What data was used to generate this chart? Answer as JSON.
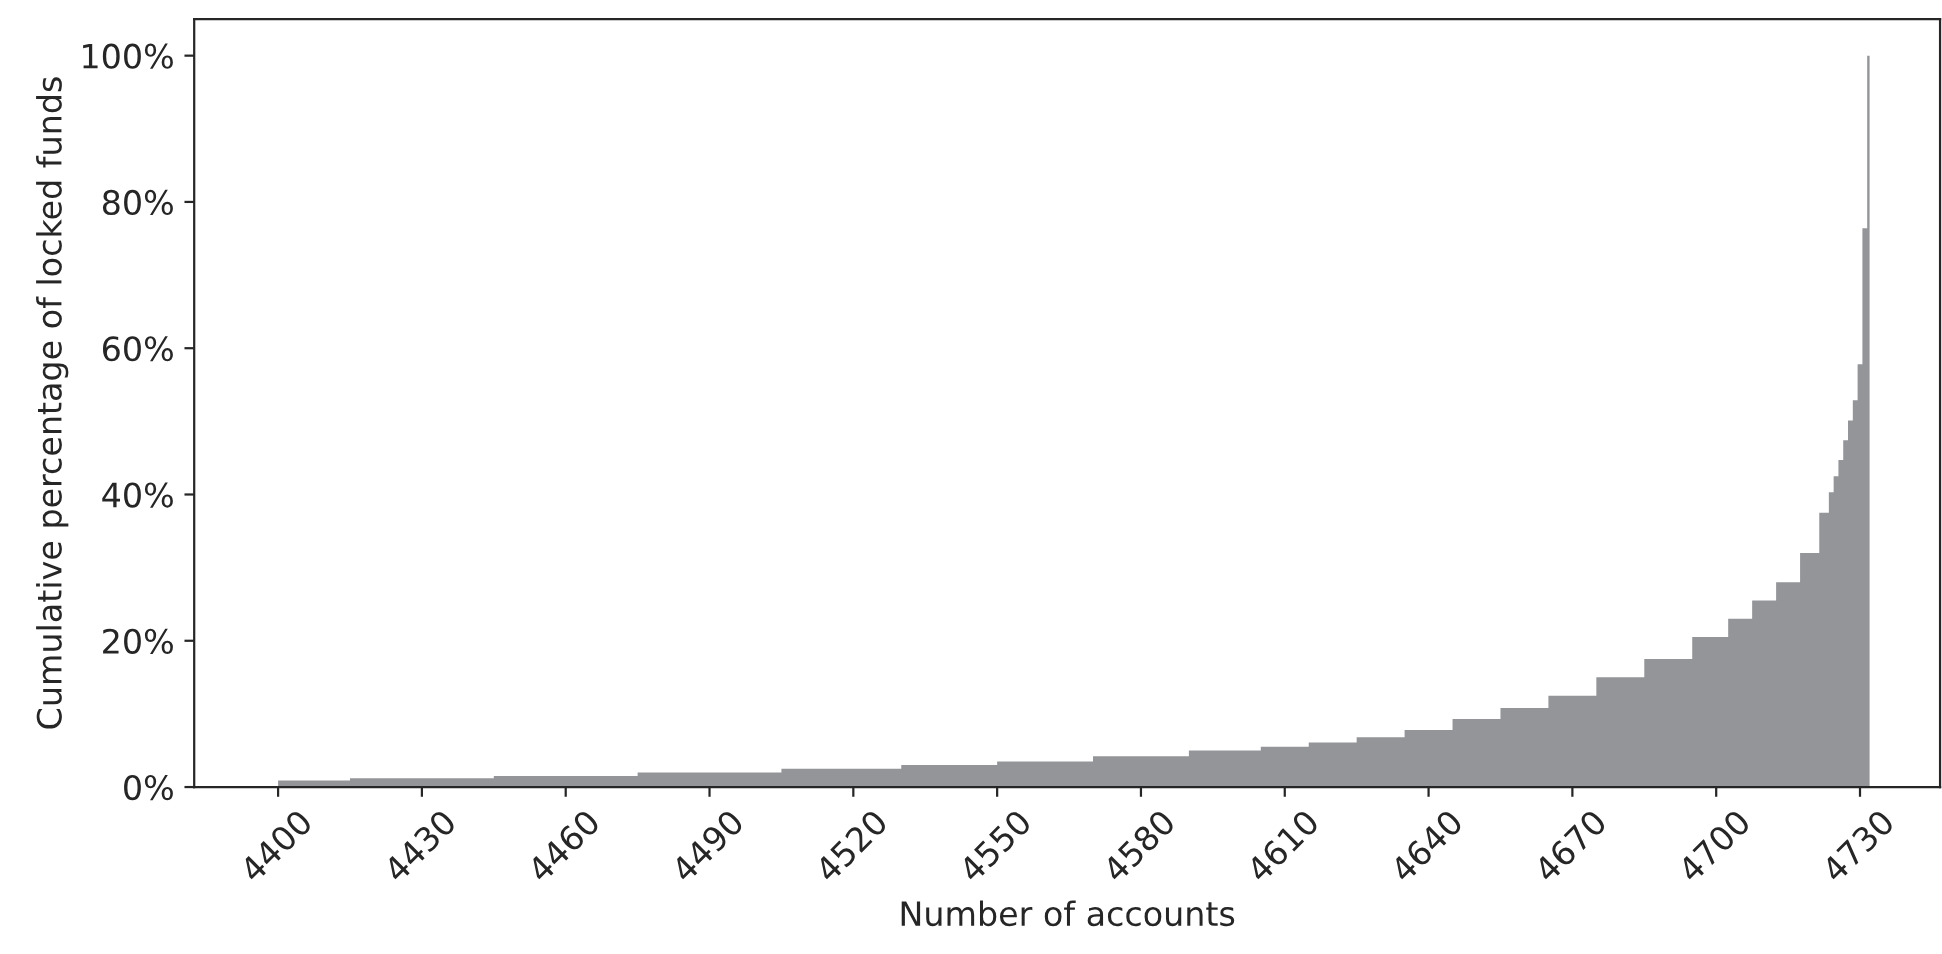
{
  "chart_data": {
    "type": "area",
    "xlabel": "Number of accounts",
    "ylabel": "Cumulative percentage of locked funds",
    "x": [
      4400,
      4430,
      4460,
      4490,
      4520,
      4540,
      4560,
      4580,
      4600,
      4610,
      4620,
      4630,
      4640,
      4650,
      4660,
      4670,
      4680,
      4690,
      4700,
      4705,
      4710,
      4715,
      4720,
      4723,
      4724,
      4725,
      4726,
      4727,
      4728,
      4729,
      4730,
      4731,
      4732
    ],
    "series": [
      {
        "color": "#939598",
        "values": [
          0.9,
          1.2,
          1.5,
          2.0,
          2.5,
          3.0,
          3.5,
          4.2,
          5.0,
          5.5,
          6.1,
          6.8,
          7.8,
          9.3,
          10.8,
          12.5,
          15,
          17.5,
          20.5,
          23,
          25.5,
          28,
          32,
          37.5,
          40.3,
          42.5,
          44.7,
          47.4,
          50.1,
          52.9,
          57.8,
          76.4,
          100
        ]
      }
    ],
    "xlim": [
      4382.5,
      4746.7
    ],
    "ylim": [
      0,
      105
    ],
    "xticks": [
      4400,
      4430,
      4460,
      4490,
      4520,
      4550,
      4580,
      4610,
      4640,
      4670,
      4700,
      4730
    ],
    "yticks": [
      {
        "value": 0,
        "label": "0%"
      },
      {
        "value": 20,
        "label": "20%"
      },
      {
        "value": 40,
        "label": "40%"
      },
      {
        "value": 60,
        "label": "60%"
      },
      {
        "value": 80,
        "label": "80%"
      },
      {
        "value": 100,
        "label": "100%"
      }
    ],
    "grid": false,
    "legend": false
  }
}
